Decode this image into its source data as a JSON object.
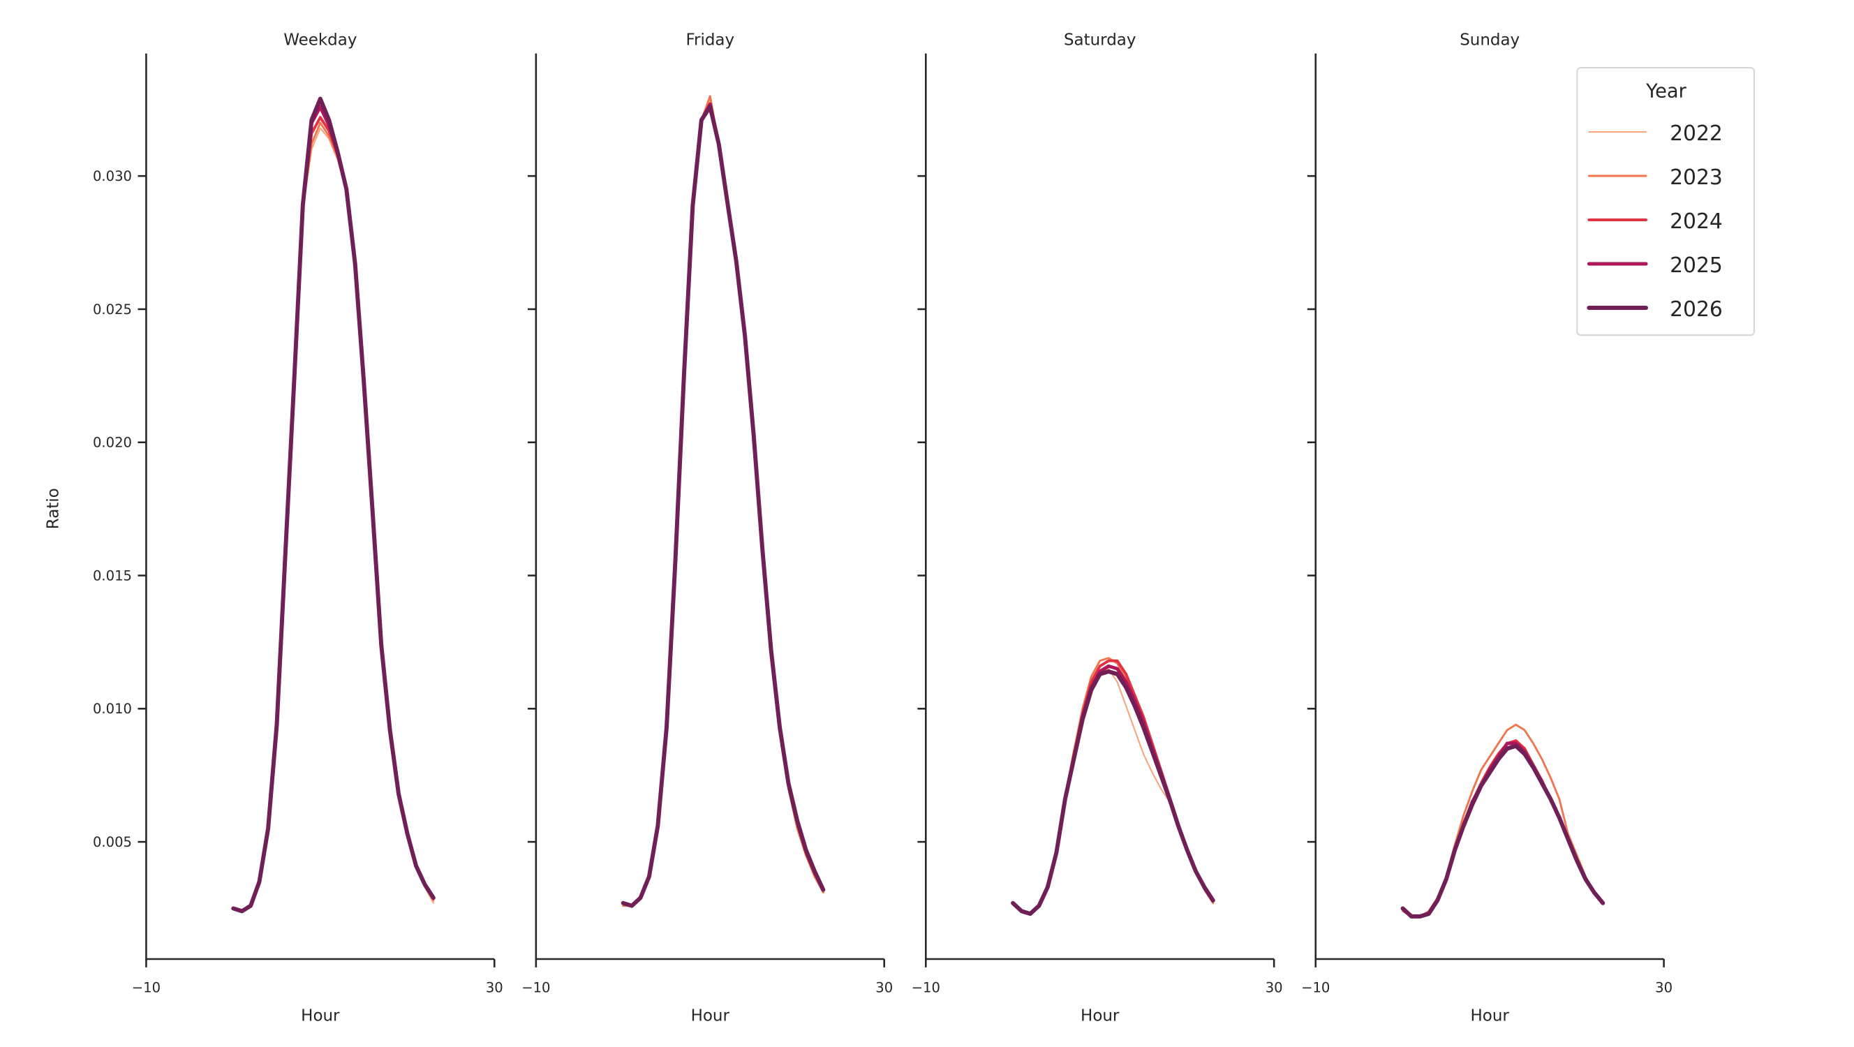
{
  "chart_data": {
    "type": "line",
    "ylabel": "Ratio",
    "ylim": [
      0.0006,
      0.0346
    ],
    "xlim": [
      -10,
      30
    ],
    "yticks": [
      "0.005",
      "0.010",
      "0.015",
      "0.020",
      "0.025",
      "0.030"
    ],
    "ytick_values": [
      0.005,
      0.01,
      0.015,
      0.02,
      0.025,
      0.03
    ],
    "xticks": [
      "−10",
      "30"
    ],
    "xtick_values": [
      -10,
      30
    ],
    "grid": false,
    "legend": {
      "title": "Year",
      "placement": "top-right",
      "entries": [
        "2022",
        "2023",
        "2024",
        "2025",
        "2026"
      ]
    },
    "colors": {
      "2022": "#f6a47b",
      "2023": "#f07650",
      "2024": "#e13342",
      "2025": "#ad1759",
      "2026": "#701f57"
    },
    "x": [
      0,
      1,
      2,
      3,
      4,
      5,
      6,
      7,
      8,
      9,
      10,
      11,
      12,
      13,
      14,
      15,
      16,
      17,
      18,
      19,
      20,
      21,
      22,
      23
    ],
    "panels": [
      {
        "title": "Weekday",
        "xlabel": "Hour",
        "series": [
          {
            "name": "2022",
            "values": [
              0.0025,
              0.0024,
              0.0026,
              0.0035,
              0.0055,
              0.0094,
              0.0159,
              0.0223,
              0.0287,
              0.031,
              0.0318,
              0.0314,
              0.0306,
              0.0294,
              0.0267,
              0.0223,
              0.0174,
              0.0124,
              0.0092,
              0.0068,
              0.0052,
              0.004,
              0.0033,
              0.0027
            ]
          },
          {
            "name": "2023",
            "values": [
              0.0025,
              0.0024,
              0.0026,
              0.0035,
              0.0055,
              0.0094,
              0.0159,
              0.0223,
              0.0288,
              0.0312,
              0.032,
              0.0315,
              0.0307,
              0.0294,
              0.0267,
              0.0223,
              0.0174,
              0.0124,
              0.0092,
              0.0068,
              0.0053,
              0.0041,
              0.0034,
              0.0028
            ]
          },
          {
            "name": "2024",
            "values": [
              0.0025,
              0.0024,
              0.0026,
              0.0035,
              0.0055,
              0.0094,
              0.0159,
              0.0223,
              0.0288,
              0.0316,
              0.0322,
              0.0317,
              0.0308,
              0.0295,
              0.0267,
              0.0223,
              0.0174,
              0.0124,
              0.0092,
              0.0068,
              0.0053,
              0.0041,
              0.0034,
              0.0029
            ]
          },
          {
            "name": "2025",
            "values": [
              0.0025,
              0.0024,
              0.0026,
              0.0035,
              0.0055,
              0.0094,
              0.0159,
              0.0223,
              0.0289,
              0.032,
              0.0326,
              0.0319,
              0.0309,
              0.0295,
              0.0267,
              0.0223,
              0.0174,
              0.0124,
              0.0092,
              0.0068,
              0.0053,
              0.0041,
              0.0034,
              0.0029
            ]
          },
          {
            "name": "2026",
            "values": [
              0.0025,
              0.0024,
              0.0026,
              0.0035,
              0.0055,
              0.0094,
              0.0159,
              0.0223,
              0.0289,
              0.0321,
              0.0329,
              0.0321,
              0.0309,
              0.0295,
              0.0267,
              0.0223,
              0.0174,
              0.0124,
              0.0092,
              0.0068,
              0.0053,
              0.0041,
              0.0034,
              0.0029
            ]
          }
        ]
      },
      {
        "title": "Friday",
        "xlabel": "Hour",
        "series": [
          {
            "name": "2022",
            "values": [
              0.0026,
              0.0026,
              0.0029,
              0.0037,
              0.0056,
              0.0093,
              0.0155,
              0.0225,
              0.0289,
              0.0321,
              0.0328,
              0.0312,
              0.029,
              0.0268,
              0.024,
              0.0203,
              0.016,
              0.0122,
              0.0092,
              0.007,
              0.0055,
              0.0045,
              0.0037,
              0.0031
            ]
          },
          {
            "name": "2023",
            "values": [
              0.0026,
              0.0026,
              0.0029,
              0.0037,
              0.0056,
              0.0093,
              0.0155,
              0.0225,
              0.0289,
              0.0321,
              0.033,
              0.0312,
              0.029,
              0.0268,
              0.024,
              0.0203,
              0.016,
              0.0122,
              0.0092,
              0.007,
              0.0055,
              0.0045,
              0.0037,
              0.0031
            ]
          },
          {
            "name": "2024",
            "values": [
              0.0027,
              0.0026,
              0.0029,
              0.0037,
              0.0056,
              0.0093,
              0.0155,
              0.0225,
              0.0289,
              0.0321,
              0.0327,
              0.0312,
              0.029,
              0.0268,
              0.024,
              0.0203,
              0.016,
              0.0122,
              0.0093,
              0.0071,
              0.0057,
              0.0046,
              0.0038,
              0.0032
            ]
          },
          {
            "name": "2025",
            "values": [
              0.0027,
              0.0026,
              0.0029,
              0.0037,
              0.0056,
              0.0093,
              0.0155,
              0.0225,
              0.0289,
              0.0321,
              0.0327,
              0.0312,
              0.029,
              0.0268,
              0.024,
              0.0203,
              0.016,
              0.0122,
              0.0093,
              0.0072,
              0.0058,
              0.0047,
              0.0039,
              0.0032
            ]
          },
          {
            "name": "2026",
            "values": [
              0.0027,
              0.0026,
              0.0029,
              0.0037,
              0.0056,
              0.0093,
              0.0155,
              0.0225,
              0.0289,
              0.0321,
              0.0326,
              0.0312,
              0.029,
              0.0268,
              0.024,
              0.0203,
              0.016,
              0.0122,
              0.0093,
              0.0072,
              0.0058,
              0.0047,
              0.0039,
              0.0032
            ]
          }
        ]
      },
      {
        "title": "Saturday",
        "xlabel": "Hour",
        "series": [
          {
            "name": "2022",
            "values": [
              0.0027,
              0.0024,
              0.0023,
              0.0026,
              0.0033,
              0.0046,
              0.0066,
              0.0081,
              0.0096,
              0.0108,
              0.0114,
              0.0115,
              0.011,
              0.0101,
              0.0092,
              0.0083,
              0.0076,
              0.007,
              0.0065,
              0.0056,
              0.0047,
              0.0039,
              0.0033,
              0.0028
            ]
          },
          {
            "name": "2023",
            "values": [
              0.0027,
              0.0024,
              0.0023,
              0.0026,
              0.0033,
              0.0046,
              0.0067,
              0.0084,
              0.01,
              0.0112,
              0.0118,
              0.0119,
              0.0117,
              0.0111,
              0.0103,
              0.0094,
              0.0085,
              0.0076,
              0.0066,
              0.0056,
              0.0047,
              0.0039,
              0.0032,
              0.0027
            ]
          },
          {
            "name": "2024",
            "values": [
              0.0027,
              0.0024,
              0.0023,
              0.0026,
              0.0033,
              0.0046,
              0.0066,
              0.0082,
              0.0098,
              0.011,
              0.0116,
              0.0118,
              0.0118,
              0.0113,
              0.0105,
              0.0097,
              0.0087,
              0.0077,
              0.0067,
              0.0057,
              0.0047,
              0.0039,
              0.0033,
              0.0028
            ]
          },
          {
            "name": "2025",
            "values": [
              0.0027,
              0.0024,
              0.0023,
              0.0026,
              0.0033,
              0.0046,
              0.0066,
              0.0081,
              0.0097,
              0.0108,
              0.0114,
              0.0116,
              0.0115,
              0.011,
              0.0103,
              0.0095,
              0.0085,
              0.0076,
              0.0066,
              0.0056,
              0.0047,
              0.0039,
              0.0033,
              0.0028
            ]
          },
          {
            "name": "2026",
            "values": [
              0.0027,
              0.0024,
              0.0023,
              0.0026,
              0.0033,
              0.0046,
              0.0066,
              0.0081,
              0.0096,
              0.0107,
              0.0113,
              0.0114,
              0.0113,
              0.0108,
              0.0101,
              0.0093,
              0.0084,
              0.0075,
              0.0066,
              0.0056,
              0.0047,
              0.0039,
              0.0033,
              0.0028
            ]
          }
        ]
      },
      {
        "title": "Sunday",
        "xlabel": "Hour",
        "series": [
          {
            "name": "2022",
            "values": [
              0.0025,
              0.0022,
              0.0022,
              0.0023,
              0.0028,
              0.0036,
              0.0047,
              0.0056,
              0.0064,
              0.0071,
              0.0076,
              0.0081,
              0.0085,
              0.0086,
              0.0083,
              0.0078,
              0.0072,
              0.0066,
              0.0059,
              0.0051,
              0.0043,
              0.0036,
              0.0031,
              0.0027
            ]
          },
          {
            "name": "2023",
            "values": [
              0.0024,
              0.0022,
              0.0022,
              0.0024,
              0.0029,
              0.0037,
              0.0049,
              0.006,
              0.0069,
              0.0077,
              0.0082,
              0.0087,
              0.0092,
              0.0094,
              0.0092,
              0.0087,
              0.0081,
              0.0074,
              0.0066,
              0.0053,
              0.0045,
              0.0037,
              0.0031,
              0.0027
            ]
          },
          {
            "name": "2024",
            "values": [
              0.0025,
              0.0022,
              0.0022,
              0.0023,
              0.0028,
              0.0036,
              0.0047,
              0.0057,
              0.0065,
              0.0072,
              0.0078,
              0.0083,
              0.0087,
              0.0088,
              0.0085,
              0.0079,
              0.0073,
              0.0066,
              0.0059,
              0.0051,
              0.0043,
              0.0036,
              0.0031,
              0.0027
            ]
          },
          {
            "name": "2025",
            "values": [
              0.0025,
              0.0022,
              0.0022,
              0.0023,
              0.0028,
              0.0036,
              0.0047,
              0.0056,
              0.0065,
              0.0071,
              0.0077,
              0.0082,
              0.0087,
              0.0087,
              0.0084,
              0.0078,
              0.0072,
              0.0066,
              0.0059,
              0.0051,
              0.0043,
              0.0036,
              0.0031,
              0.0027
            ]
          },
          {
            "name": "2026",
            "values": [
              0.0025,
              0.0022,
              0.0022,
              0.0023,
              0.0028,
              0.0036,
              0.0047,
              0.0056,
              0.0064,
              0.0071,
              0.0076,
              0.0081,
              0.0085,
              0.0086,
              0.0083,
              0.0078,
              0.0072,
              0.0066,
              0.0059,
              0.0051,
              0.0043,
              0.0036,
              0.0031,
              0.0027
            ]
          }
        ]
      }
    ]
  }
}
